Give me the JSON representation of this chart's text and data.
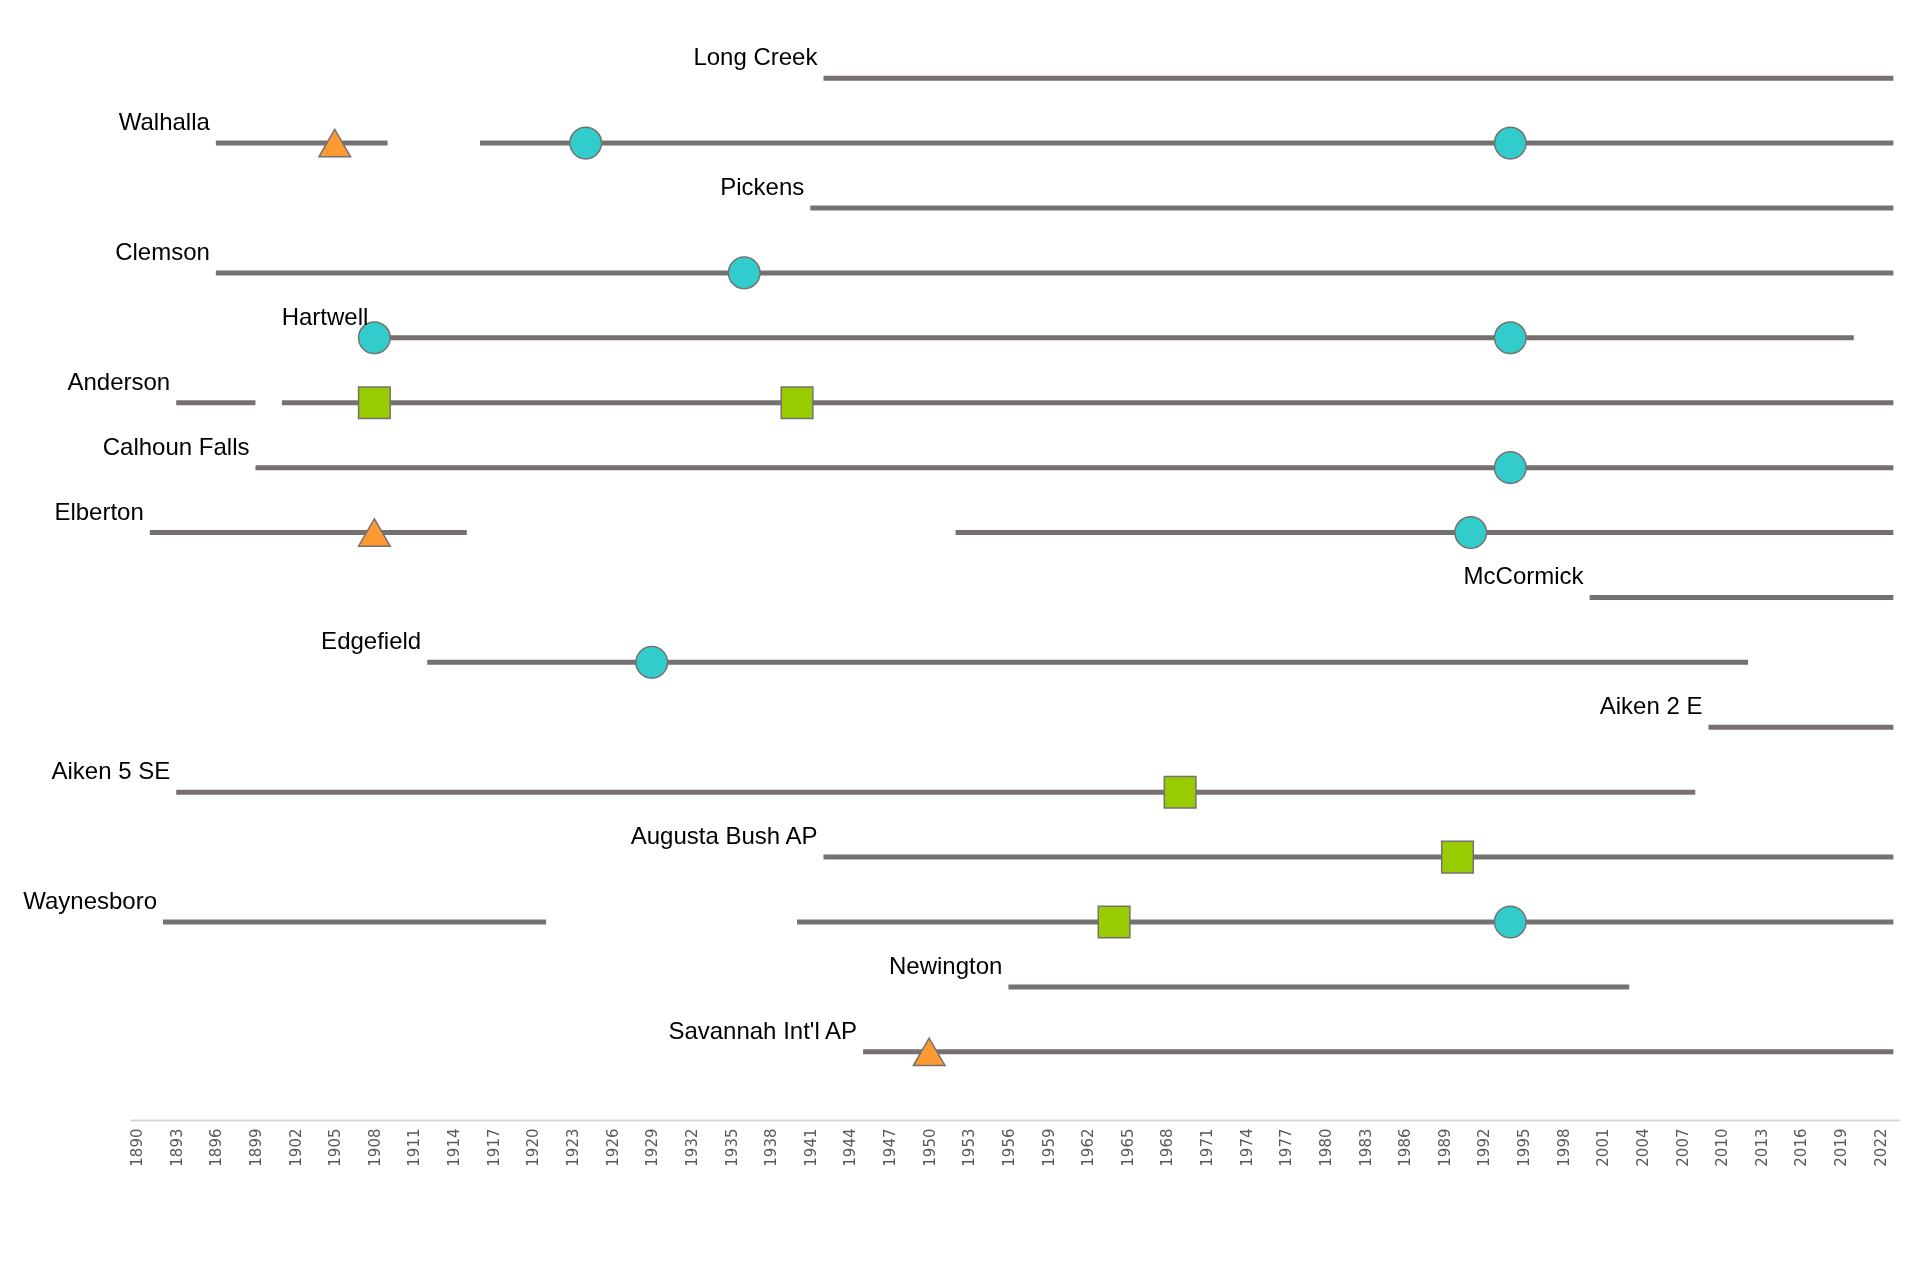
{
  "chart_data": {
    "type": "bar",
    "orientation": "horizontal",
    "tick_labels": "x",
    "grid": false,
    "categories": [
      "Long Creek",
      "Walhalla",
      "Pickens",
      "Clemson",
      "Hartwell",
      "Anderson",
      "Calhoun Falls",
      "Elberton",
      "McCormick",
      "Edgefield",
      "Aiken 2 E",
      "Aiken 5 SE",
      "Augusta Bush AP",
      "Waynesboro",
      "Newington",
      "Savannah Int'l AP"
    ],
    "xlim": [
      1889.5,
      2023.5
    ],
    "xticks": [
      1890,
      1893,
      1896,
      1899,
      1902,
      1905,
      1908,
      1911,
      1914,
      1917,
      1920,
      1923,
      1926,
      1929,
      1932,
      1935,
      1938,
      1941,
      1944,
      1947,
      1950,
      1953,
      1956,
      1959,
      1962,
      1965,
      1968,
      1971,
      1974,
      1977,
      1980,
      1983,
      1986,
      1989,
      1992,
      1995,
      1998,
      2001,
      2004,
      2007,
      2010,
      2013,
      2016,
      2019,
      2022
    ],
    "series": [
      {
        "type": "bar",
        "color": "#767171",
        "base": [
          1942,
          1896,
          1941,
          1896,
          1908,
          1893,
          1899,
          1891,
          2000,
          1912,
          2009,
          1893,
          1942,
          1892,
          1956,
          1945
        ],
        "values": [
          81,
          13,
          82,
          127,
          112,
          6,
          124,
          24,
          23,
          100,
          14,
          115,
          81,
          29,
          47,
          78
        ]
      },
      {
        "type": "bar",
        "color": "#767171",
        "base": [
          null,
          1916,
          null,
          null,
          null,
          1901,
          null,
          1952,
          null,
          null,
          null,
          null,
          null,
          1940,
          null,
          null
        ],
        "values": [
          null,
          107,
          null,
          null,
          null,
          122,
          null,
          71,
          null,
          null,
          null,
          null,
          null,
          83,
          null,
          null
        ]
      },
      {
        "type": "scatter",
        "marker": "triangle",
        "color": "#ff9933",
        "values": [
          null,
          1905,
          null,
          null,
          null,
          null,
          null,
          1908,
          null,
          null,
          null,
          null,
          null,
          null,
          null,
          1950
        ]
      },
      {
        "type": "scatter",
        "marker": "circle",
        "color": "#33cccc",
        "values": [
          null,
          1924,
          null,
          1936,
          1908,
          null,
          1994,
          1991,
          null,
          1929,
          null,
          null,
          null,
          1994,
          null,
          null
        ]
      },
      {
        "type": "scatter",
        "marker": "circle",
        "color": "#33cccc",
        "values": [
          null,
          1994,
          null,
          null,
          1994,
          null,
          null,
          null,
          null,
          null,
          null,
          null,
          null,
          null,
          null,
          null
        ]
      },
      {
        "type": "scatter",
        "marker": "square",
        "color": "#99cc00",
        "values": [
          null,
          null,
          null,
          null,
          null,
          1908,
          null,
          null,
          null,
          null,
          null,
          1969,
          1990,
          1964,
          null,
          null
        ]
      },
      {
        "type": "scatter",
        "marker": "square",
        "color": "#99cc00",
        "values": [
          null,
          null,
          null,
          null,
          null,
          1940,
          null,
          null,
          null,
          null,
          null,
          null,
          null,
          null,
          null,
          null
        ]
      }
    ]
  }
}
